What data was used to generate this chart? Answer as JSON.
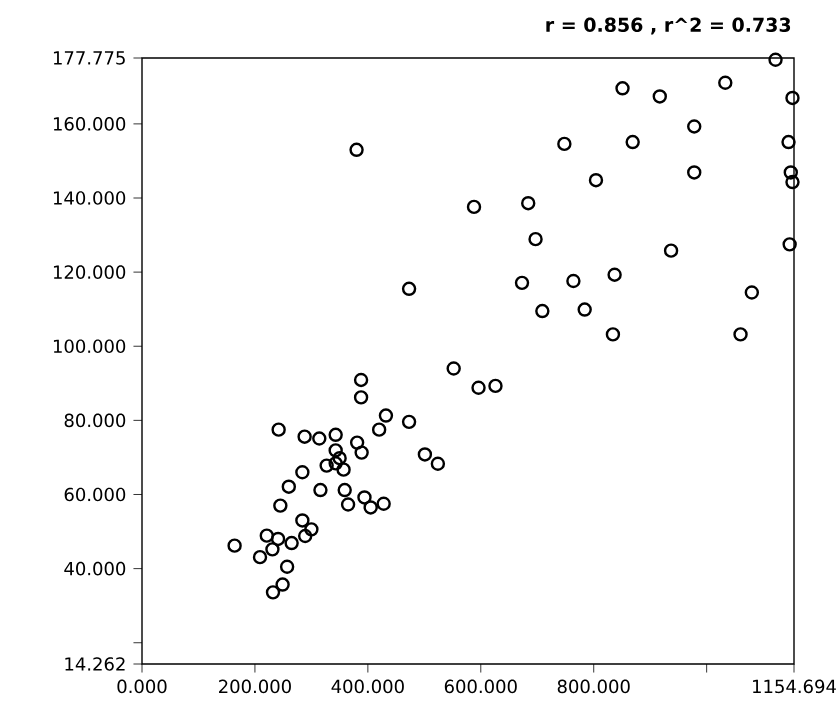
{
  "chart_data": {
    "type": "scatter",
    "annotations": [
      "r = 0.856 , r^2 = 0.733"
    ],
    "xlim": [
      0,
      1154.694
    ],
    "ylim": [
      14.262,
      177.775
    ],
    "xticks": [
      {
        "value": 0,
        "label": "0.000"
      },
      {
        "value": 200,
        "label": "200.000"
      },
      {
        "value": 400,
        "label": "400.000"
      },
      {
        "value": 600,
        "label": "600.000"
      },
      {
        "value": 800,
        "label": "800.000"
      },
      {
        "value": 1000,
        "label": null
      },
      {
        "value": 1154.694,
        "label": "1154.694"
      }
    ],
    "yticks": [
      {
        "value": 14.262,
        "label": "14.262"
      },
      {
        "value": 20,
        "label": null
      },
      {
        "value": 40,
        "label": "40.000"
      },
      {
        "value": 60,
        "label": "60.000"
      },
      {
        "value": 80,
        "label": "80.000"
      },
      {
        "value": 100,
        "label": "100.000"
      },
      {
        "value": 120,
        "label": "120.000"
      },
      {
        "value": 140,
        "label": "140.000"
      },
      {
        "value": 160,
        "label": "160.000"
      },
      {
        "value": 177.775,
        "label": "177.775"
      }
    ],
    "marker": "circle",
    "series": [
      {
        "color": "#000000",
        "x": [
          1122,
          851,
          917,
          1033,
          1152,
          380,
          748,
          869,
          978,
          1145,
          804,
          978,
          1149,
          1152,
          588,
          684,
          697,
          937,
          1147,
          473,
          673,
          764,
          837,
          1080,
          709,
          784,
          834,
          1060,
          552,
          388,
          388,
          596,
          626,
          432,
          473,
          420,
          242,
          288,
          314,
          343,
          381,
          389,
          343,
          350,
          343,
          327,
          357,
          501,
          524,
          284,
          260,
          316,
          359,
          365,
          394,
          405,
          428,
          245,
          284,
          300,
          289,
          221,
          241,
          265,
          164,
          231,
          209,
          257,
          249,
          232
        ],
        "values": [
          177.3,
          169.6,
          167.4,
          171.1,
          167.0,
          153.0,
          154.6,
          155.1,
          159.3,
          155.1,
          144.8,
          146.9,
          146.9,
          144.3,
          137.6,
          138.6,
          128.9,
          125.8,
          127.5,
          115.5,
          117.1,
          117.6,
          119.3,
          114.5,
          109.5,
          109.9,
          103.2,
          103.2,
          94.0,
          90.9,
          86.2,
          88.8,
          89.3,
          81.3,
          79.6,
          77.5,
          77.5,
          75.6,
          75.1,
          76.1,
          74.0,
          71.3,
          71.9,
          69.8,
          68.4,
          67.8,
          66.7,
          70.8,
          68.3,
          66.0,
          62.1,
          61.2,
          61.2,
          57.3,
          59.2,
          56.5,
          57.5,
          57.0,
          53.0,
          50.6,
          48.8,
          48.9,
          48.0,
          46.9,
          46.2,
          45.2,
          43.1,
          40.5,
          35.7,
          33.6
        ]
      }
    ]
  }
}
